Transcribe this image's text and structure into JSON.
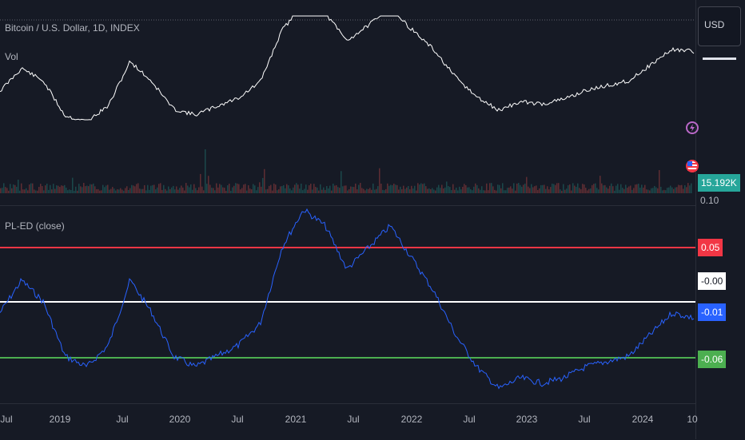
{
  "symbol_title": "Bitcoin / U.S. Dollar, 1D, INDEX",
  "vol_label": "Vol",
  "indicator_label": "PL-ED (close)",
  "currency_label": "USD",
  "volume_tag": "15.192K",
  "osc_axis_cut": "0.10",
  "icons": {
    "alert": "lightning-icon",
    "flag": "us-flag-icon"
  },
  "colors": {
    "price": "#ffffff",
    "oscillator": "#2962ff",
    "upper": "#f23645",
    "zero": "#ffffff",
    "lower": "#4caf50",
    "vol_tag": "#26a69a"
  },
  "chart_data": {
    "type": "line",
    "x_ticks": [
      "Jul",
      "2019",
      "Jul",
      "2020",
      "Jul",
      "2021",
      "Jul",
      "2022",
      "Jul",
      "2023",
      "Jul",
      "2024",
      "10"
    ],
    "series": [
      {
        "values": [
          -0.01,
          0.02,
          0.0,
          -0.05,
          -0.06,
          -0.04,
          0.02,
          -0.01,
          -0.05,
          -0.06,
          -0.05,
          -0.04,
          -0.02,
          0.05,
          0.085,
          0.07,
          0.03,
          0.05,
          0.07,
          0.04,
          0.01,
          -0.03,
          -0.06,
          -0.08,
          -0.07,
          -0.075,
          -0.07,
          -0.06,
          -0.055,
          -0.05,
          -0.03,
          -0.01,
          -0.015
        ]
      }
    ],
    "levels": [
      {
        "label": "0.05",
        "value": 0.05
      },
      {
        "label": "-0.00",
        "value": 0.0
      },
      {
        "label": "-0.01",
        "value": -0.01
      },
      {
        "label": "-0.06",
        "value": -0.06
      }
    ]
  }
}
